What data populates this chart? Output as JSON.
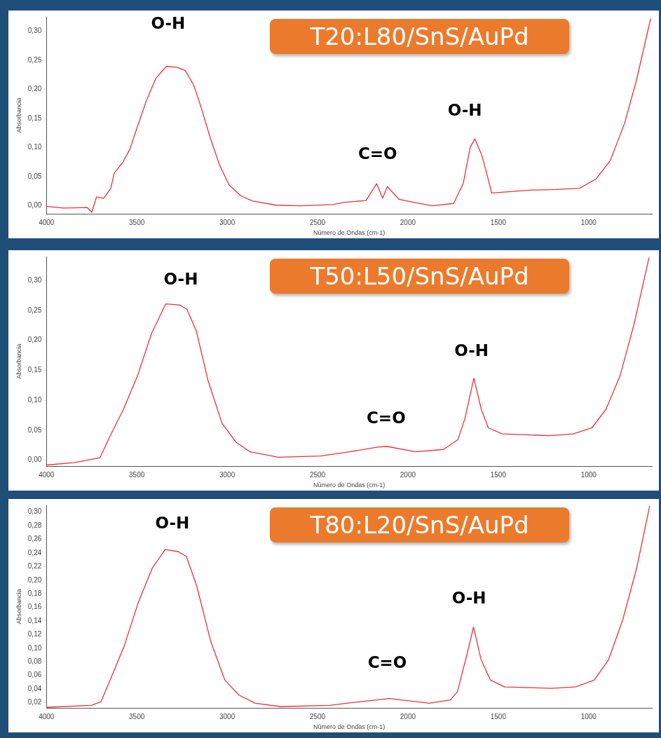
{
  "chart_data": [
    {
      "type": "line",
      "title": "T20:L80/SnS/AuPd",
      "xlabel": "Número de Ondas (cm-1)",
      "ylabel": "Absorbancia",
      "xlim": [
        4000,
        650
      ],
      "ylim": [
        -0.014,
        0.325
      ],
      "xticks": [
        4000,
        3500,
        3000,
        2500,
        2000,
        1500,
        1000
      ],
      "yticks": [
        {
          "value": 0,
          "label": "0,00"
        },
        {
          "value": 0.05,
          "label": "0,05"
        },
        {
          "value": 0.1,
          "label": "0,10"
        },
        {
          "value": 0.15,
          "label": "0,15"
        },
        {
          "value": 0.2,
          "label": "0,20"
        },
        {
          "value": 0.25,
          "label": "0,25"
        },
        {
          "value": 0.3,
          "label": "0,30"
        }
      ],
      "grid": false,
      "marker": "none",
      "series": [
        {
          "color": "#e8333a",
          "x": [
            4000,
            3906,
            3775,
            3749,
            3723,
            3683,
            3644,
            3625,
            3579,
            3539,
            3500,
            3448,
            3395,
            3336,
            3278,
            3232,
            3186,
            3147,
            3094,
            3042,
            2990,
            2924,
            2859,
            2728,
            2597,
            2414,
            2350,
            2232,
            2173,
            2140,
            2114,
            2049,
            1970,
            1865,
            1747,
            1694,
            1655,
            1629,
            1589,
            1556,
            1537,
            1445,
            1314,
            1182,
            1051,
            959,
            880,
            802,
            736,
            657
          ],
          "values": [
            -0.001,
            -0.004,
            -0.003,
            -0.011,
            0.015,
            0.013,
            0.03,
            0.056,
            0.074,
            0.097,
            0.133,
            0.18,
            0.219,
            0.24,
            0.238,
            0.233,
            0.208,
            0.172,
            0.117,
            0.07,
            0.036,
            0.017,
            0.008,
            0.001,
            0,
            0.002,
            0.006,
            0.009,
            0.038,
            0.013,
            0.033,
            0.011,
            0.006,
            0,
            0.004,
            0.038,
            0.101,
            0.115,
            0.085,
            0.046,
            0.022,
            0.024,
            0.027,
            0.028,
            0.03,
            0.046,
            0.078,
            0.141,
            0.215,
            0.322
          ]
        }
      ],
      "annotations": [
        "O-H",
        "C=O",
        "O-H"
      ]
    },
    {
      "type": "line",
      "title": "T50:L50/SnS/AuPd",
      "xlabel": "Número de Ondas (cm-1)",
      "ylabel": "Absorbancia",
      "xlim": [
        4000,
        650
      ],
      "ylim": [
        -0.01,
        0.34
      ],
      "xticks": [
        4000,
        3500,
        3000,
        2500,
        2000,
        1500,
        1000
      ],
      "yticks": [
        {
          "value": 0,
          "label": "0,00"
        },
        {
          "value": 0.05,
          "label": "0,05"
        },
        {
          "value": 0.1,
          "label": "0,10"
        },
        {
          "value": 0.15,
          "label": "0,15"
        },
        {
          "value": 0.2,
          "label": "0,20"
        },
        {
          "value": 0.25,
          "label": "0,25"
        },
        {
          "value": 0.3,
          "label": "0,30"
        }
      ],
      "grid": false,
      "marker": "none",
      "series": [
        {
          "color": "#e8333a",
          "x": [
            4000,
            3847,
            3704,
            3652,
            3574,
            3496,
            3418,
            3340,
            3262,
            3223,
            3171,
            3106,
            3029,
            2951,
            2873,
            2717,
            2483,
            2323,
            2167,
            2115,
            1958,
            1802,
            1724,
            1685,
            1635,
            1594,
            1555,
            1477,
            1216,
            1086,
            982,
            904,
            826,
            748,
            666
          ],
          "values": [
            -0.008,
            -0.004,
            0.004,
            0.038,
            0.085,
            0.141,
            0.212,
            0.261,
            0.259,
            0.252,
            0.216,
            0.133,
            0.062,
            0.03,
            0.014,
            0.005,
            0.007,
            0.014,
            0.022,
            0.023,
            0.014,
            0.018,
            0.034,
            0.069,
            0.137,
            0.085,
            0.054,
            0.044,
            0.041,
            0.044,
            0.054,
            0.085,
            0.141,
            0.228,
            0.338
          ]
        }
      ],
      "annotations": [
        "O-H",
        "C=O",
        "O-H"
      ]
    },
    {
      "type": "line",
      "title": "T80:L20/SnS/AuPd",
      "xlabel": "Número de Ondas (cm-1)",
      "ylabel": "Absorbancia",
      "xlim": [
        4000,
        650
      ],
      "ylim": [
        0.012,
        0.31
      ],
      "xticks": [
        4000,
        3500,
        3000,
        2500,
        2000,
        1500,
        1000
      ],
      "yticks": [
        {
          "value": 0.02,
          "label": "0,02"
        },
        {
          "value": 0.04,
          "label": "0,04"
        },
        {
          "value": 0.06,
          "label": "0,06"
        },
        {
          "value": 0.08,
          "label": "0,08"
        },
        {
          "value": 0.1,
          "label": "0,10"
        },
        {
          "value": 0.12,
          "label": "0,12"
        },
        {
          "value": 0.14,
          "label": "0,14"
        },
        {
          "value": 0.16,
          "label": "0,16"
        },
        {
          "value": 0.18,
          "label": "0,18"
        },
        {
          "value": 0.2,
          "label": "0,20"
        },
        {
          "value": 0.22,
          "label": "0,22"
        },
        {
          "value": 0.24,
          "label": "0,24"
        },
        {
          "value": 0.26,
          "label": "0,26"
        },
        {
          "value": 0.28,
          "label": "0,28"
        },
        {
          "value": 0.3,
          "label": "0,30"
        }
      ],
      "grid": false,
      "marker": "none",
      "series": [
        {
          "color": "#e8333a",
          "x": [
            4000,
            3751,
            3699,
            3648,
            3570,
            3492,
            3414,
            3343,
            3272,
            3226,
            3168,
            3091,
            3013,
            2935,
            2845,
            2702,
            2430,
            2339,
            2170,
            2104,
            1882,
            1765,
            1726,
            1674,
            1637,
            1595,
            1543,
            1465,
            1204,
            1073,
            969,
            890,
            812,
            734,
            662
          ],
          "values": [
            0.013,
            0.016,
            0.021,
            0.053,
            0.103,
            0.167,
            0.218,
            0.245,
            0.242,
            0.235,
            0.191,
            0.11,
            0.053,
            0.031,
            0.019,
            0.014,
            0.016,
            0.019,
            0.024,
            0.026,
            0.019,
            0.024,
            0.036,
            0.09,
            0.131,
            0.083,
            0.053,
            0.043,
            0.041,
            0.043,
            0.053,
            0.083,
            0.141,
            0.218,
            0.309
          ]
        }
      ],
      "annotations": [
        "O-H",
        "C=O",
        "O-H"
      ]
    }
  ]
}
